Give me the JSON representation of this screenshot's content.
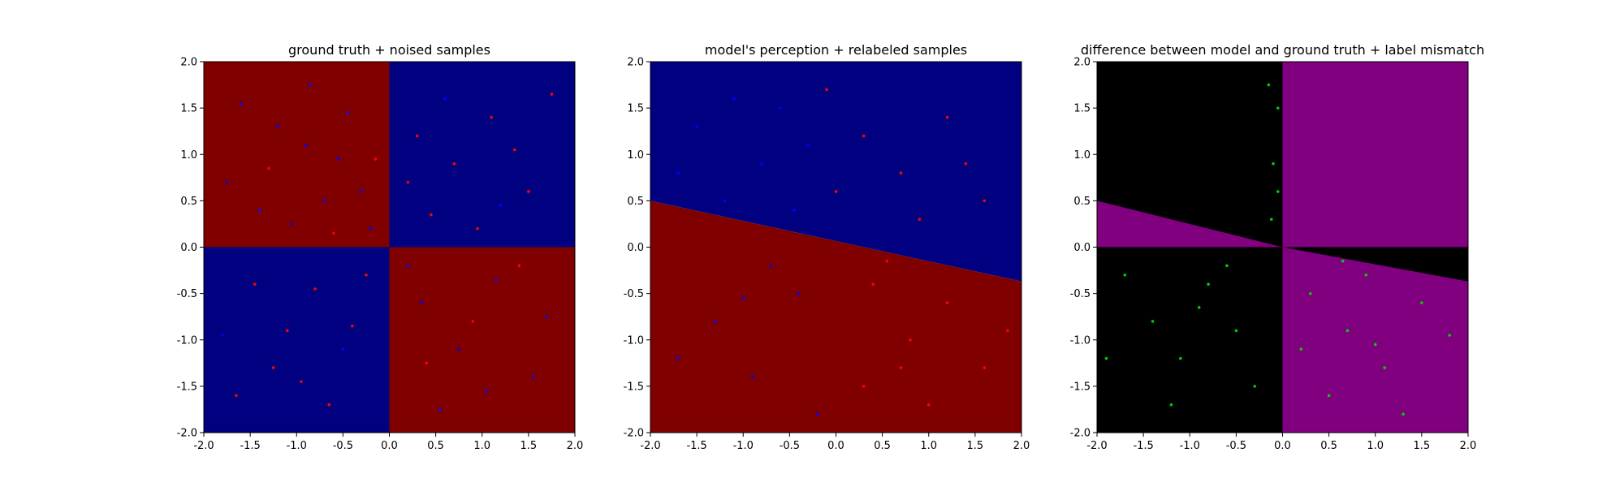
{
  "chart_data": [
    {
      "type": "scatter",
      "title": "ground truth + noised samples",
      "xlim": [
        -2.0,
        2.0
      ],
      "ylim": [
        -2.0,
        2.0
      ],
      "xticks": [
        "-2.0",
        "-1.5",
        "-1.0",
        "-0.5",
        "0.0",
        "0.5",
        "1.0",
        "1.5",
        "2.0"
      ],
      "yticks": [
        "-2.0",
        "-1.5",
        "-1.0",
        "-0.5",
        "0.0",
        "0.5",
        "1.0",
        "1.5",
        "2.0"
      ],
      "background": "quadrant (x*y<0 -> red, x*y>0 -> blue)",
      "region_colors": {
        "red": "#800000",
        "blue": "#000080"
      },
      "points": [
        {
          "x": -1.6,
          "y": 1.55,
          "c": "blue"
        },
        {
          "x": -1.2,
          "y": 1.3,
          "c": "blue"
        },
        {
          "x": -0.9,
          "y": 1.1,
          "c": "blue"
        },
        {
          "x": -0.55,
          "y": 0.95,
          "c": "blue"
        },
        {
          "x": -0.3,
          "y": 0.6,
          "c": "blue"
        },
        {
          "x": -1.75,
          "y": 0.7,
          "c": "blue"
        },
        {
          "x": -1.4,
          "y": 0.4,
          "c": "blue"
        },
        {
          "x": -1.05,
          "y": 0.25,
          "c": "blue"
        },
        {
          "x": -0.7,
          "y": 0.5,
          "c": "blue"
        },
        {
          "x": -0.2,
          "y": 0.2,
          "c": "blue"
        },
        {
          "x": -0.45,
          "y": 1.45,
          "c": "blue"
        },
        {
          "x": -0.85,
          "y": 1.75,
          "c": "blue"
        },
        {
          "x": -1.3,
          "y": 0.85,
          "c": "red"
        },
        {
          "x": -0.6,
          "y": 0.15,
          "c": "red"
        },
        {
          "x": -0.15,
          "y": 0.95,
          "c": "red"
        },
        {
          "x": 0.3,
          "y": 1.2,
          "c": "red"
        },
        {
          "x": 0.7,
          "y": 0.9,
          "c": "red"
        },
        {
          "x": 1.1,
          "y": 1.4,
          "c": "red"
        },
        {
          "x": 1.5,
          "y": 0.6,
          "c": "red"
        },
        {
          "x": 0.45,
          "y": 0.35,
          "c": "red"
        },
        {
          "x": 0.95,
          "y": 0.2,
          "c": "red"
        },
        {
          "x": 1.35,
          "y": 1.05,
          "c": "red"
        },
        {
          "x": 0.2,
          "y": 0.7,
          "c": "red"
        },
        {
          "x": 1.75,
          "y": 1.65,
          "c": "red"
        },
        {
          "x": 0.6,
          "y": 1.6,
          "c": "blue"
        },
        {
          "x": 1.2,
          "y": 0.45,
          "c": "blue"
        },
        {
          "x": -1.65,
          "y": -1.6,
          "c": "red"
        },
        {
          "x": -1.1,
          "y": -0.9,
          "c": "red"
        },
        {
          "x": -0.8,
          "y": -0.45,
          "c": "red"
        },
        {
          "x": -0.4,
          "y": -0.85,
          "c": "red"
        },
        {
          "x": -0.25,
          "y": -0.3,
          "c": "red"
        },
        {
          "x": -1.45,
          "y": -0.4,
          "c": "red"
        },
        {
          "x": -1.25,
          "y": -1.3,
          "c": "red"
        },
        {
          "x": -0.65,
          "y": -1.7,
          "c": "red"
        },
        {
          "x": -0.95,
          "y": -1.45,
          "c": "red"
        },
        {
          "x": -0.5,
          "y": -1.1,
          "c": "blue"
        },
        {
          "x": -1.8,
          "y": -0.95,
          "c": "blue"
        },
        {
          "x": 0.35,
          "y": -0.6,
          "c": "blue"
        },
        {
          "x": 0.75,
          "y": -1.1,
          "c": "blue"
        },
        {
          "x": 1.15,
          "y": -0.35,
          "c": "blue"
        },
        {
          "x": 1.55,
          "y": -1.4,
          "c": "blue"
        },
        {
          "x": 0.55,
          "y": -1.75,
          "c": "blue"
        },
        {
          "x": 1.05,
          "y": -1.55,
          "c": "blue"
        },
        {
          "x": 0.2,
          "y": -0.2,
          "c": "blue"
        },
        {
          "x": 1.7,
          "y": -0.75,
          "c": "blue"
        },
        {
          "x": 0.9,
          "y": -0.8,
          "c": "red"
        },
        {
          "x": 0.4,
          "y": -1.25,
          "c": "red"
        },
        {
          "x": 1.4,
          "y": -0.2,
          "c": "red"
        }
      ]
    },
    {
      "type": "scatter",
      "title": "model's perception + relabeled samples",
      "xlim": [
        -2.0,
        2.0
      ],
      "ylim": [
        -2.0,
        2.0
      ],
      "xticks": [
        "-2.0",
        "-1.5",
        "-1.0",
        "-0.5",
        "0.0",
        "0.5",
        "1.0",
        "1.5",
        "2.0"
      ],
      "yticks": [
        "-2.0",
        "-1.5",
        "-1.0",
        "-0.5",
        "0.0",
        "0.5",
        "1.0",
        "1.5",
        "2.0"
      ],
      "decision_boundary": {
        "x": [
          -2.0,
          2.0
        ],
        "y": [
          0.5,
          -0.37
        ],
        "above": "blue",
        "below": "red"
      },
      "region_colors": {
        "red": "#800000",
        "blue": "#000080"
      },
      "points": [
        {
          "x": -1.5,
          "y": 1.3,
          "c": "blue"
        },
        {
          "x": -1.1,
          "y": 1.6,
          "c": "blue"
        },
        {
          "x": -0.8,
          "y": 0.9,
          "c": "blue"
        },
        {
          "x": -0.45,
          "y": 0.4,
          "c": "blue"
        },
        {
          "x": -1.7,
          "y": 0.8,
          "c": "blue"
        },
        {
          "x": -0.3,
          "y": 1.1,
          "c": "blue"
        },
        {
          "x": -1.2,
          "y": 0.5,
          "c": "blue"
        },
        {
          "x": -0.6,
          "y": 1.5,
          "c": "blue"
        },
        {
          "x": -1.3,
          "y": -0.8,
          "c": "blue"
        },
        {
          "x": -0.9,
          "y": -1.4,
          "c": "blue"
        },
        {
          "x": -0.4,
          "y": -0.5,
          "c": "blue"
        },
        {
          "x": -1.7,
          "y": -1.2,
          "c": "blue"
        },
        {
          "x": -0.2,
          "y": -1.8,
          "c": "blue"
        },
        {
          "x": -0.7,
          "y": -0.2,
          "c": "blue"
        },
        {
          "x": -1.0,
          "y": -0.55,
          "c": "blue"
        },
        {
          "x": 0.3,
          "y": 1.2,
          "c": "red"
        },
        {
          "x": 0.7,
          "y": 0.8,
          "c": "red"
        },
        {
          "x": 1.2,
          "y": 1.4,
          "c": "red"
        },
        {
          "x": 1.6,
          "y": 0.5,
          "c": "red"
        },
        {
          "x": 0.0,
          "y": 0.6,
          "c": "red"
        },
        {
          "x": 0.9,
          "y": 0.3,
          "c": "red"
        },
        {
          "x": -0.1,
          "y": 1.7,
          "c": "red"
        },
        {
          "x": 1.4,
          "y": 0.9,
          "c": "red"
        },
        {
          "x": 0.4,
          "y": -0.4,
          "c": "red"
        },
        {
          "x": 0.8,
          "y": -1.0,
          "c": "red"
        },
        {
          "x": 1.2,
          "y": -0.6,
          "c": "red"
        },
        {
          "x": 1.6,
          "y": -1.3,
          "c": "red"
        },
        {
          "x": 0.3,
          "y": -1.5,
          "c": "red"
        },
        {
          "x": 1.0,
          "y": -1.7,
          "c": "red"
        },
        {
          "x": 0.55,
          "y": -0.15,
          "c": "red"
        },
        {
          "x": 1.85,
          "y": -0.9,
          "c": "red"
        },
        {
          "x": 0.7,
          "y": -1.3,
          "c": "red"
        }
      ]
    },
    {
      "type": "scatter",
      "title": "difference between model and ground truth + label mismatch",
      "xlim": [
        -2.0,
        2.0
      ],
      "ylim": [
        -2.0,
        2.0
      ],
      "xticks": [
        "-2.0",
        "-1.5",
        "-1.0",
        "-0.5",
        "0.0",
        "0.5",
        "1.0",
        "1.5",
        "2.0"
      ],
      "yticks": [
        "-2.0",
        "-1.5",
        "-1.0",
        "-0.5",
        "0.0",
        "0.5",
        "1.0",
        "1.5",
        "2.0"
      ],
      "region_colors": {
        "match": "#000000",
        "mismatch": "#800080"
      },
      "point_color": "#00cc00",
      "points": [
        {
          "x": -0.15,
          "y": 1.75,
          "c": "green"
        },
        {
          "x": -0.05,
          "y": 1.5,
          "c": "green"
        },
        {
          "x": -0.1,
          "y": 0.9,
          "c": "green"
        },
        {
          "x": -0.05,
          "y": 0.6,
          "c": "green"
        },
        {
          "x": -0.12,
          "y": 0.3,
          "c": "green"
        },
        {
          "x": -1.7,
          "y": -0.3,
          "c": "green"
        },
        {
          "x": -1.4,
          "y": -0.8,
          "c": "green"
        },
        {
          "x": -1.1,
          "y": -1.2,
          "c": "green"
        },
        {
          "x": -0.8,
          "y": -0.4,
          "c": "green"
        },
        {
          "x": -0.5,
          "y": -0.9,
          "c": "green"
        },
        {
          "x": -0.3,
          "y": -1.5,
          "c": "green"
        },
        {
          "x": -1.2,
          "y": -1.7,
          "c": "green"
        },
        {
          "x": -0.6,
          "y": -0.2,
          "c": "green"
        },
        {
          "x": -1.9,
          "y": -1.2,
          "c": "green"
        },
        {
          "x": -0.9,
          "y": -0.65,
          "c": "green"
        },
        {
          "x": 0.3,
          "y": -0.5,
          "c": "green"
        },
        {
          "x": 0.7,
          "y": -0.9,
          "c": "green"
        },
        {
          "x": 1.1,
          "y": -1.3,
          "c": "green"
        },
        {
          "x": 1.5,
          "y": -0.6,
          "c": "green"
        },
        {
          "x": 0.5,
          "y": -1.6,
          "c": "green"
        },
        {
          "x": 0.9,
          "y": -0.3,
          "c": "green"
        },
        {
          "x": 1.3,
          "y": -1.8,
          "c": "green"
        },
        {
          "x": 0.2,
          "y": -1.1,
          "c": "green"
        },
        {
          "x": 1.8,
          "y": -0.95,
          "c": "green"
        },
        {
          "x": 0.65,
          "y": -0.15,
          "c": "green"
        },
        {
          "x": 1.0,
          "y": -1.05,
          "c": "green"
        }
      ]
    }
  ]
}
